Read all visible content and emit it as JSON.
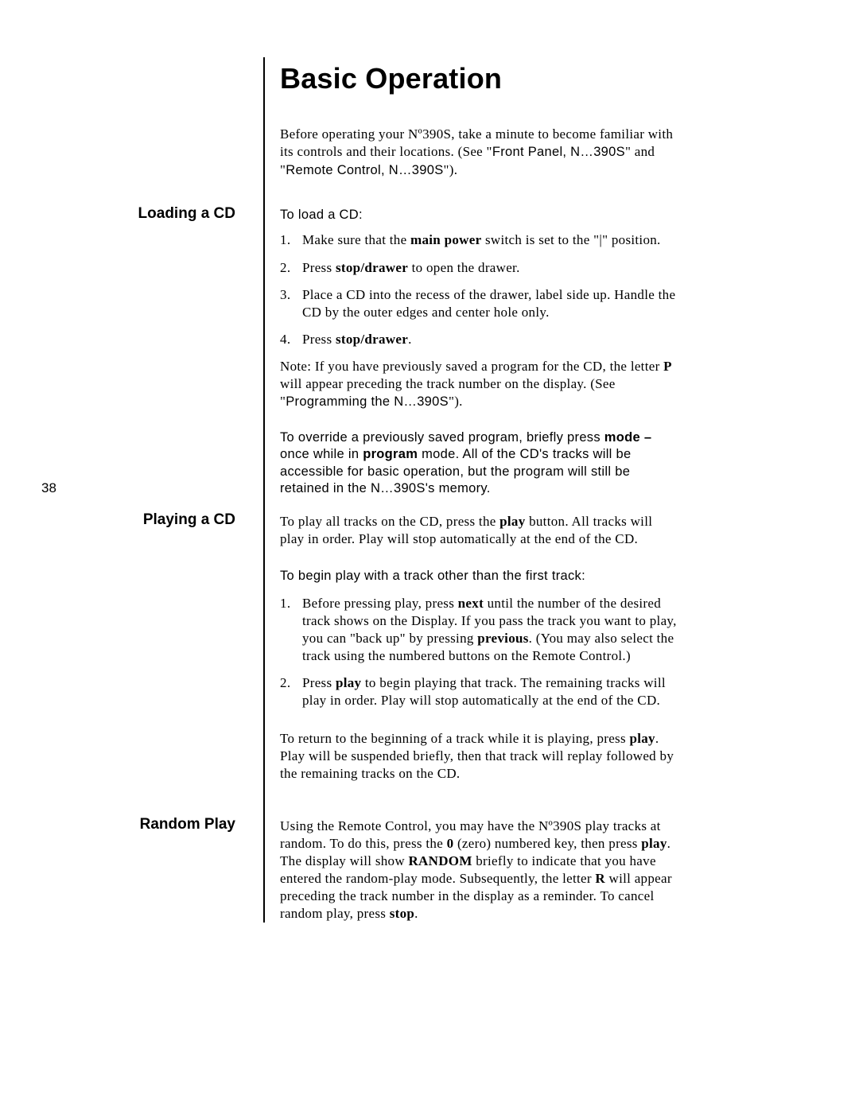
{
  "page_number": "38",
  "title": "Basic Operation",
  "intro_html": "Before operating your Nº390S, take a minute to become familiar with its controls and their locations. (See \"<span class='sans'>Front Panel, N…390S</span>\" and \"<span class='sans'>Remote Control, N…390S</span>\").",
  "sections": {
    "loading": {
      "heading": "Loading a CD",
      "lead": "To load a CD:",
      "steps": [
        "Make sure that the <b>main power</b> switch is set to the \"|\" position.",
        "Press <b>stop/drawer</b> to open the drawer.",
        "Place a CD into the recess of the drawer, label side up. Handle the CD by the outer edges and center hole only.",
        "Press <b>stop/drawer</b>."
      ],
      "note_html": "Note: If you have previously saved a program for the CD, the letter <b>P</b> will appear preceding the track number on the display. (See \"<span class='sans'>Programming the N…390S</span>\").",
      "override_html": "To override a previously saved program, briefly press <b>mode –</b> once while in <b>program</b> mode. All of the CD's tracks will be accessible for basic operation, but the program will still be retained in the N…390S's memory."
    },
    "playing": {
      "heading": "Playing a CD",
      "p1_html": "To play all tracks on the CD, press the <b>play</b> button. All tracks will play in order. Play will stop automatically at the end of the CD.",
      "p2": "To begin play with a track other than the first track:",
      "steps": [
        "Before pressing play, press <b>next</b> until the number of the desired track shows on the Display. If you pass the track you want to play, you can \"back up\" by pressing <b>previous</b>. (You may also select the track using the numbered buttons on the Remote Control.)",
        "Press <b>play</b> to begin playing that track. The remaining tracks will play in order. Play will stop automatically at the end of the CD."
      ],
      "p3_html": "To return to the beginning of a track while it is playing, press <b>play</b>. Play will be suspended briefly, then that track will replay followed by the remaining tracks on the CD."
    },
    "random": {
      "heading": "Random Play",
      "body_html": "Using the Remote Control, you may have the Nº390S play tracks at random. To do this, press the <b>0</b> (zero) numbered key, then press <b>play</b>. The display will show <b>RANDOM</b> briefly to indicate that you have entered the random-play mode. Subsequently, the letter <b>R</b> will appear preceding the track number in the display as a reminder. To cancel random play, press <b>stop</b>."
    }
  },
  "layout": {
    "heading_tops": {
      "loading": 258,
      "playing": 643,
      "random": 1026
    },
    "body_tops": {
      "loading_lead": 260,
      "loading_note": 450,
      "loading_override": 540,
      "playing_p1": 645,
      "playing_p2": 714,
      "playing_steps": 738,
      "playing_p3": 918,
      "random_body": 1028
    }
  }
}
